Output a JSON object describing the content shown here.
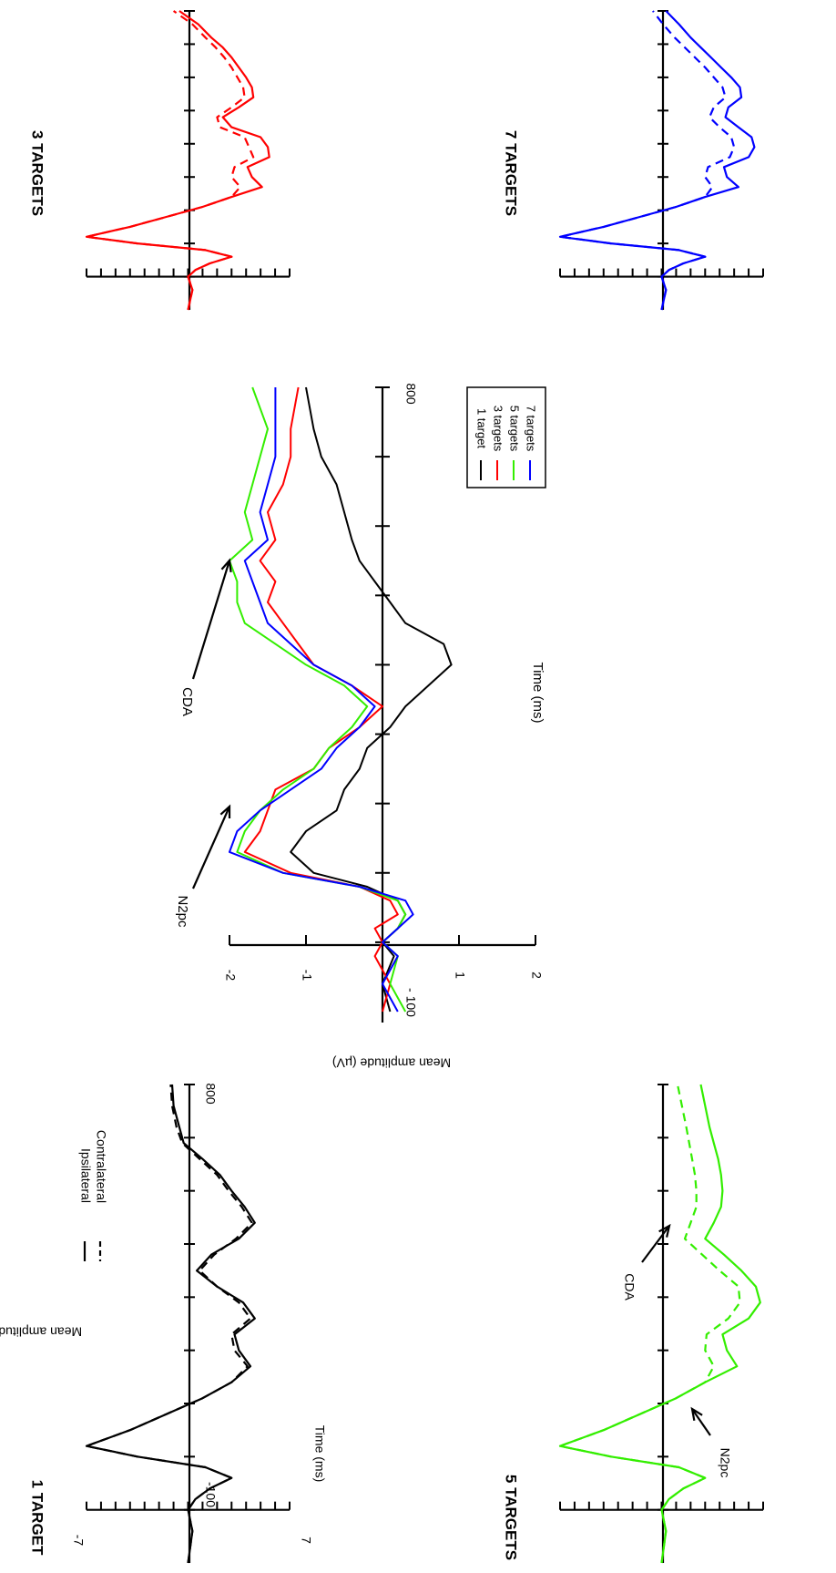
{
  "chart_data": [
    {
      "type": "line",
      "panel": "main",
      "title": "",
      "xlabel": "Time (ms)",
      "ylabel": "Mean amplitude (µV)",
      "xlim": [
        -100,
        800
      ],
      "ylim": [
        2,
        -2
      ],
      "y_ticks": [
        -2,
        -1,
        1,
        2
      ],
      "x_tick_labels": [
        "- 100",
        "800"
      ],
      "legend": [
        "1 target",
        "3 targets",
        "5 targets",
        "7 targets"
      ],
      "legend_position": "right",
      "annotations": [
        "N2pc",
        "CDA"
      ],
      "series": [
        {
          "name": "1 target",
          "color": "#000000",
          "x": [
            -100,
            -60,
            -20,
            0,
            20,
            40,
            60,
            80,
            100,
            130,
            160,
            190,
            220,
            250,
            280,
            310,
            340,
            370,
            400,
            430,
            460,
            490,
            520,
            550,
            580,
            620,
            660,
            700,
            740,
            800
          ],
          "y": [
            0.1,
            0,
            0.15,
            0,
            0.2,
            0.3,
            0.2,
            -0.2,
            -0.9,
            -1.2,
            -1.0,
            -0.6,
            -0.5,
            -0.3,
            -0.2,
            0.1,
            0.3,
            0.6,
            0.9,
            0.8,
            0.3,
            0.1,
            -0.1,
            -0.3,
            -0.4,
            -0.5,
            -0.6,
            -0.8,
            -0.9,
            -1.0
          ]
        },
        {
          "name": "3 targets",
          "color": "#ff0000",
          "x": [
            -100,
            -60,
            -20,
            0,
            20,
            40,
            60,
            80,
            100,
            130,
            160,
            190,
            220,
            250,
            280,
            310,
            340,
            370,
            400,
            430,
            460,
            490,
            520,
            550,
            580,
            620,
            660,
            700,
            740,
            800
          ],
          "y": [
            0,
            0.1,
            -0.1,
            0,
            -0.1,
            0.2,
            0.1,
            -0.3,
            -1.2,
            -1.8,
            -1.6,
            -1.5,
            -1.4,
            -0.9,
            -0.7,
            -0.3,
            0,
            -0.4,
            -0.9,
            -1.1,
            -1.3,
            -1.5,
            -1.4,
            -1.6,
            -1.4,
            -1.5,
            -1.3,
            -1.2,
            -1.2,
            -1.1
          ]
        },
        {
          "name": "5 targets",
          "color": "#33ee00",
          "x": [
            -100,
            -60,
            -20,
            0,
            20,
            40,
            60,
            80,
            100,
            130,
            160,
            190,
            220,
            250,
            280,
            310,
            340,
            370,
            400,
            430,
            460,
            490,
            520,
            550,
            580,
            620,
            660,
            700,
            740,
            800
          ],
          "y": [
            0.3,
            0.1,
            0.2,
            0,
            0.2,
            0.3,
            0.2,
            -0.3,
            -1.3,
            -1.9,
            -1.8,
            -1.6,
            -1.3,
            -0.9,
            -0.7,
            -0.4,
            -0.2,
            -0.5,
            -1.0,
            -1.4,
            -1.8,
            -1.9,
            -1.9,
            -2.0,
            -1.7,
            -1.8,
            -1.7,
            -1.6,
            -1.5,
            -1.7
          ]
        },
        {
          "name": "7 targets",
          "color": "#0000ff",
          "x": [
            -100,
            -60,
            -20,
            0,
            20,
            40,
            60,
            80,
            100,
            130,
            160,
            190,
            220,
            250,
            280,
            310,
            340,
            370,
            400,
            430,
            460,
            490,
            520,
            550,
            580,
            620,
            660,
            700,
            740,
            800
          ],
          "y": [
            0.2,
            0,
            0.2,
            0,
            0.2,
            0.4,
            0.3,
            -0.3,
            -1.3,
            -2.0,
            -1.9,
            -1.6,
            -1.2,
            -0.8,
            -0.6,
            -0.3,
            -0.1,
            -0.4,
            -0.9,
            -1.2,
            -1.5,
            -1.6,
            -1.7,
            -1.8,
            -1.5,
            -1.6,
            -1.5,
            -1.4,
            -1.4,
            -1.4
          ]
        }
      ]
    },
    {
      "type": "line",
      "panel": "1 target",
      "title": "1 TARGET",
      "xlabel": "Time (ms)",
      "ylabel": "Mean amplitude (µV)",
      "xlim": [
        -100,
        800
      ],
      "ylim": [
        -7,
        7
      ],
      "y_tick_labels": [
        "-7",
        "7"
      ],
      "x_tick_labels": [
        "-100",
        "800"
      ],
      "legend": [
        "Ipsilateral",
        "Contralateral"
      ],
      "color": "#000000",
      "series": [
        {
          "name": "Ipsilateral",
          "style": "solid",
          "x": [
            -100,
            -40,
            0,
            20,
            40,
            60,
            80,
            100,
            120,
            150,
            180,
            210,
            240,
            270,
            300,
            330,
            360,
            390,
            420,
            450,
            480,
            510,
            540,
            570,
            600,
            630,
            660,
            690,
            720,
            760,
            800
          ],
          "y": [
            0,
            0.3,
            0,
            0.5,
            1.5,
            3,
            1.2,
            -3.5,
            -7,
            -4,
            -1.5,
            1,
            3,
            4.3,
            3.5,
            3.2,
            4.6,
            3.8,
            2,
            0.6,
            1.6,
            3.5,
            4.6,
            3.9,
            3,
            2.2,
            1,
            -0.3,
            -0.6,
            -1,
            -1.1
          ]
        },
        {
          "name": "Contralateral",
          "style": "dashed",
          "x": [
            -100,
            -40,
            0,
            20,
            40,
            60,
            80,
            100,
            120,
            150,
            180,
            210,
            240,
            270,
            300,
            330,
            360,
            390,
            420,
            450,
            480,
            510,
            540,
            570,
            600,
            630,
            660,
            690,
            720,
            760,
            800
          ],
          "y": [
            0,
            0.3,
            0,
            0.5,
            1.5,
            3,
            1.2,
            -3.5,
            -7,
            -4,
            -1.5,
            1,
            3,
            4.1,
            3.2,
            3,
            4.3,
            3.5,
            2,
            0.8,
            1.8,
            3.3,
            4.4,
            3.7,
            2.8,
            2,
            0.8,
            -0.4,
            -0.8,
            -1.1,
            -1.2
          ]
        }
      ]
    },
    {
      "type": "line",
      "panel": "3 targets",
      "title": "3 TARGETS",
      "xlim": [
        -100,
        800
      ],
      "ylim": [
        -7,
        7
      ],
      "color": "#ff0000",
      "series": [
        {
          "name": "Ipsilateral",
          "style": "solid",
          "x": [
            -100,
            -40,
            0,
            20,
            40,
            60,
            80,
            100,
            120,
            150,
            180,
            210,
            240,
            270,
            300,
            330,
            360,
            390,
            420,
            450,
            480,
            510,
            540,
            570,
            600,
            630,
            660,
            690,
            720,
            760,
            800
          ],
          "y": [
            0,
            0.3,
            0,
            0.5,
            1.5,
            3,
            1.2,
            -3.5,
            -7,
            -4,
            -1.5,
            1,
            3,
            5.1,
            4.4,
            4.1,
            5.6,
            5.5,
            5,
            3,
            2.4,
            3.5,
            4.5,
            4.4,
            4,
            3.5,
            3,
            2.4,
            1.6,
            0.7,
            -0.6
          ]
        },
        {
          "name": "Contralateral",
          "style": "dashed",
          "x": [
            -100,
            -40,
            0,
            20,
            40,
            60,
            80,
            100,
            120,
            150,
            180,
            210,
            240,
            270,
            300,
            330,
            360,
            390,
            420,
            450,
            480,
            510,
            540,
            570,
            600,
            630,
            660,
            690,
            720,
            760,
            800
          ],
          "y": [
            0,
            0.3,
            0,
            0.5,
            1.5,
            3,
            1.2,
            -3.5,
            -7,
            -4,
            -1.5,
            1,
            3,
            3.6,
            3,
            3.2,
            4.5,
            4.2,
            3.9,
            2.2,
            2,
            3,
            3.9,
            3.8,
            3.4,
            3,
            2.5,
            1.9,
            1.2,
            0.3,
            -1
          ]
        }
      ]
    },
    {
      "type": "line",
      "panel": "5 targets",
      "title": "5 TARGETS",
      "xlim": [
        -100,
        800
      ],
      "ylim": [
        -7,
        7
      ],
      "color": "#33ee00",
      "annotations": [
        "N2pc",
        "CDA"
      ],
      "series": [
        {
          "name": "Ipsilateral",
          "style": "solid",
          "x": [
            -100,
            -40,
            0,
            20,
            40,
            60,
            80,
            100,
            120,
            150,
            180,
            210,
            240,
            270,
            300,
            330,
            360,
            390,
            420,
            450,
            480,
            510,
            540,
            570,
            600,
            630,
            660,
            690,
            720,
            760,
            800
          ],
          "y": [
            0,
            0.3,
            0,
            0.5,
            1.5,
            3,
            1.2,
            -3.5,
            -7,
            -4,
            -1.5,
            1,
            3,
            5.2,
            4.5,
            4.2,
            6,
            6.8,
            6.5,
            5.5,
            4.3,
            3,
            3.6,
            4.1,
            4.2,
            4.1,
            3.9,
            3.6,
            3.3,
            3,
            2.7
          ]
        },
        {
          "name": "Contralateral",
          "style": "dashed",
          "x": [
            -100,
            -40,
            0,
            20,
            40,
            60,
            80,
            100,
            120,
            150,
            180,
            210,
            240,
            270,
            300,
            330,
            360,
            390,
            420,
            450,
            480,
            510,
            540,
            570,
            600,
            630,
            660,
            690,
            720,
            760,
            800
          ],
          "y": [
            0,
            0.3,
            0,
            0.5,
            1.5,
            3,
            1.2,
            -3.5,
            -7,
            -4,
            -1.5,
            1,
            3,
            3.6,
            3,
            3.1,
            4.6,
            5.4,
            5.3,
            4,
            2.8,
            1.6,
            2,
            2.4,
            2.4,
            2.3,
            2.1,
            1.9,
            1.7,
            1.4,
            1.1
          ]
        }
      ]
    },
    {
      "type": "line",
      "panel": "7 targets",
      "title": "7 TARGETS",
      "xlim": [
        -100,
        800
      ],
      "ylim": [
        -7,
        7
      ],
      "color": "#0000ff",
      "series": [
        {
          "name": "Ipsilateral",
          "style": "solid",
          "x": [
            -100,
            -40,
            0,
            20,
            40,
            60,
            80,
            100,
            120,
            150,
            180,
            210,
            240,
            270,
            300,
            330,
            360,
            390,
            420,
            450,
            480,
            510,
            540,
            570,
            600,
            630,
            660,
            690,
            720,
            760,
            800
          ],
          "y": [
            0,
            0.3,
            0,
            0.5,
            1.5,
            3,
            1.2,
            -3.5,
            -7,
            -4,
            -1.5,
            1,
            3,
            5.3,
            4.5,
            4.3,
            6,
            6.4,
            6.2,
            5.3,
            4.4,
            4.6,
            5.5,
            5.4,
            4.8,
            4.1,
            3.4,
            2.7,
            2,
            1.2,
            0.3
          ]
        },
        {
          "name": "Contralateral",
          "style": "dashed",
          "x": [
            -100,
            -40,
            0,
            20,
            40,
            60,
            80,
            100,
            120,
            150,
            180,
            210,
            240,
            270,
            300,
            330,
            360,
            390,
            420,
            450,
            480,
            510,
            540,
            570,
            600,
            630,
            660,
            690,
            720,
            760,
            800
          ],
          "y": [
            0,
            0.3,
            0,
            0.5,
            1.5,
            3,
            1.2,
            -3.5,
            -7,
            -4,
            -1.5,
            1,
            3,
            3.5,
            3,
            3.2,
            4.7,
            5,
            4.8,
            4,
            3.3,
            3.6,
            4.4,
            4.2,
            3.6,
            3,
            2.3,
            1.6,
            0.9,
            0.1,
            -0.6
          ]
        }
      ]
    }
  ]
}
